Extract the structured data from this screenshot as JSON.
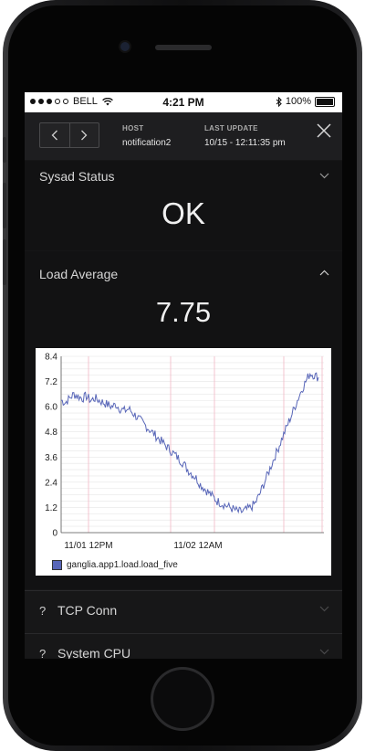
{
  "status_bar": {
    "carrier": "BELL",
    "time": "4:21 PM",
    "battery": "100%"
  },
  "header": {
    "host_label": "HOST",
    "host_value": "notification2",
    "update_label": "LAST UPDATE",
    "update_value": "10/15 - 12:11:35 pm"
  },
  "sysad": {
    "title": "Sysad Status",
    "value": "OK"
  },
  "load": {
    "title": "Load Average",
    "value": "7.75"
  },
  "chart_data": {
    "type": "line",
    "title": "",
    "xlabel": "",
    "ylabel": "",
    "ylim": [
      0,
      8.4
    ],
    "yticks": [
      "8.4",
      "7.2",
      "6.0",
      "4.8",
      "3.6",
      "2.4",
      "1.2",
      "0"
    ],
    "ytick_values": [
      8.4,
      7.2,
      6.0,
      4.8,
      3.6,
      2.4,
      1.2,
      0
    ],
    "xticks": [
      "11/01 12PM",
      "11/02 12AM"
    ],
    "grid": true,
    "legend_position": "bottom-left",
    "series": [
      {
        "name": "ganglia.app1.load.load_five",
        "color": "#5866b8",
        "values": [
          6.3,
          6.2,
          6.4,
          6.6,
          6.5,
          6.4,
          6.5,
          6.3,
          6.4,
          6.3,
          6.2,
          6.1,
          6.0,
          6.1,
          5.9,
          5.8,
          5.9,
          5.7,
          5.5,
          5.3,
          5.1,
          4.9,
          4.7,
          4.5,
          4.3,
          4.1,
          3.9,
          3.7,
          3.5,
          3.3,
          3.0,
          2.8,
          2.6,
          2.3,
          2.1,
          1.9,
          1.7,
          1.5,
          1.4,
          1.3,
          1.2,
          1.1,
          1.0,
          1.0,
          1.1,
          1.2,
          1.4,
          1.8,
          2.3,
          2.8,
          3.3,
          3.8,
          4.3,
          4.8,
          5.3,
          5.8,
          6.3,
          6.8,
          7.2,
          7.6,
          7.5,
          7.4
        ]
      }
    ]
  },
  "rows": [
    {
      "icon": "?",
      "label": "TCP Conn"
    },
    {
      "icon": "?",
      "label": "System CPU"
    }
  ],
  "colors": {
    "accent_series": "#5866b8",
    "grid_pink": "#f1b8c4"
  }
}
